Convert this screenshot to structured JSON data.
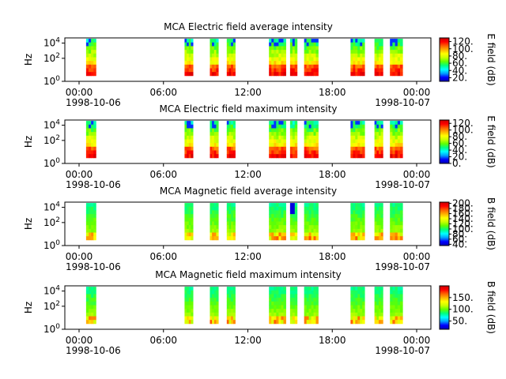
{
  "chart_data": [
    {
      "type": "heatmap",
      "title": "MCA  Electric field average intensity",
      "ylabel": "Hz",
      "x_ticks": [
        "00:00",
        "06:00",
        "12:00",
        "18:00",
        "00:00"
      ],
      "x_date_start": "1998-10-06",
      "x_date_end": "1998-10-07",
      "y_scale": "log",
      "y_ticks": [
        "10^0",
        "10^2",
        "10^4"
      ],
      "colorbar_label": "E field (dB)",
      "colorbar_ticks": [
        "20.",
        "40.",
        "60.",
        "80.",
        "100.",
        "120."
      ],
      "colorbar_range": [
        10,
        130
      ],
      "data_intervals_hours": [
        [
          0.5,
          1.2
        ],
        [
          7.5,
          8.1
        ],
        [
          9.3,
          9.9
        ],
        [
          10.5,
          11.1
        ],
        [
          13.5,
          14.7
        ],
        [
          15.0,
          15.5
        ],
        [
          16.0,
          17.0
        ],
        [
          19.3,
          20.3
        ],
        [
          21.0,
          21.6
        ],
        [
          22.1,
          23.0
        ]
      ]
    },
    {
      "type": "heatmap",
      "title": "MCA  Electric field maximum intensity",
      "ylabel": "Hz",
      "x_ticks": [
        "00:00",
        "06:00",
        "12:00",
        "18:00",
        "00:00"
      ],
      "x_date_start": "1998-10-06",
      "x_date_end": "1998-10-07",
      "y_scale": "log",
      "y_ticks": [
        "10^0",
        "10^2",
        "10^4"
      ],
      "colorbar_label": "E field (dB)",
      "colorbar_ticks": [
        "0.",
        "20.",
        "40.",
        "60.",
        "80.",
        "100.",
        "120."
      ],
      "colorbar_range": [
        0,
        130
      ],
      "data_intervals_hours": [
        [
          0.5,
          1.2
        ],
        [
          7.5,
          8.1
        ],
        [
          9.3,
          9.9
        ],
        [
          10.5,
          11.1
        ],
        [
          13.5,
          14.7
        ],
        [
          15.0,
          15.5
        ],
        [
          16.0,
          17.0
        ],
        [
          19.3,
          20.3
        ],
        [
          21.0,
          21.6
        ],
        [
          22.1,
          23.0
        ]
      ]
    },
    {
      "type": "heatmap",
      "title": "MCA  Magnetic field average intensity",
      "ylabel": "Hz",
      "x_ticks": [
        "00:00",
        "06:00",
        "12:00",
        "18:00",
        "00:00"
      ],
      "x_date_start": "1998-10-06",
      "x_date_end": "1998-10-07",
      "y_scale": "log",
      "y_ticks": [
        "10^0",
        "10^2",
        "10^4"
      ],
      "colorbar_label": "B field (dB)",
      "colorbar_ticks": [
        "40.",
        "60.",
        "80.",
        "100.",
        "120.",
        "140.",
        "160.",
        "180.",
        "200."
      ],
      "colorbar_range": [
        35,
        205
      ],
      "data_intervals_hours": [
        [
          0.5,
          1.2
        ],
        [
          7.5,
          8.1
        ],
        [
          9.3,
          9.9
        ],
        [
          10.5,
          11.1
        ],
        [
          13.5,
          14.7
        ],
        [
          15.0,
          15.5
        ],
        [
          16.0,
          17.0
        ],
        [
          19.3,
          20.3
        ],
        [
          21.0,
          21.6
        ],
        [
          22.1,
          23.0
        ]
      ]
    },
    {
      "type": "heatmap",
      "title": "MCA  Magnetic field maximum intensity",
      "ylabel": "Hz",
      "x_ticks": [
        "00:00",
        "06:00",
        "12:00",
        "18:00",
        "00:00"
      ],
      "x_date_start": "1998-10-06",
      "x_date_end": "1998-10-07",
      "y_scale": "log",
      "y_ticks": [
        "10^0",
        "10^2",
        "10^4"
      ],
      "colorbar_label": "B field (dB)",
      "colorbar_ticks": [
        "50.",
        "100.",
        "150."
      ],
      "colorbar_range": [
        15,
        200
      ],
      "data_intervals_hours": [
        [
          0.5,
          1.2
        ],
        [
          7.5,
          8.1
        ],
        [
          9.3,
          9.9
        ],
        [
          10.5,
          11.1
        ],
        [
          13.5,
          14.7
        ],
        [
          15.0,
          15.5
        ],
        [
          16.0,
          17.0
        ],
        [
          19.3,
          20.3
        ],
        [
          21.0,
          21.6
        ],
        [
          22.1,
          23.0
        ]
      ]
    }
  ],
  "colormap": [
    "#0000b4",
    "#0000ff",
    "#00a0ff",
    "#00ffff",
    "#00ff80",
    "#60ff00",
    "#c8ff00",
    "#ffff00",
    "#ffb000",
    "#ff6000",
    "#ff0000",
    "#c80000"
  ]
}
